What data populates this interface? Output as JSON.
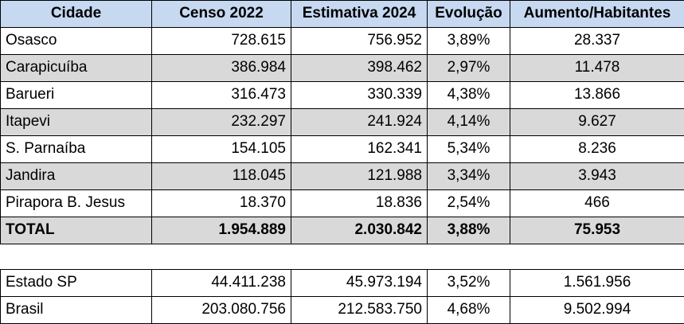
{
  "table": {
    "header": [
      "Cidade",
      "Censo 2022",
      "Estimativa 2024",
      "Evolução",
      "Aumento/Habitantes"
    ],
    "rows": [
      [
        "Osasco",
        "728.615",
        "756.952",
        "3,89%",
        "28.337"
      ],
      [
        "Carapicuíba",
        "386.984",
        "398.462",
        "2,97%",
        "11.478"
      ],
      [
        "Barueri",
        "316.473",
        "330.339",
        "4,38%",
        "13.866"
      ],
      [
        "Itapevi",
        "232.297",
        "241.924",
        "4,14%",
        "9.627"
      ],
      [
        "S. Parnaíba",
        "154.105",
        "162.341",
        "5,34%",
        "8.236"
      ],
      [
        "Jandira",
        "118.045",
        "121.988",
        "3,34%",
        "3.943"
      ],
      [
        "Pirapora B. Jesus",
        "18.370",
        "18.836",
        "2,54%",
        "466"
      ]
    ],
    "total": [
      "TOTAL",
      "1.954.889",
      "2.030.842",
      "3,88%",
      "75.953"
    ]
  },
  "table2": {
    "rows": [
      [
        "Estado SP",
        "44.411.238",
        "45.973.194",
        "3,52%",
        "1.561.956"
      ],
      [
        "Brasil",
        "203.080.756",
        "212.583.750",
        "4,68%",
        "9.502.994"
      ]
    ]
  }
}
